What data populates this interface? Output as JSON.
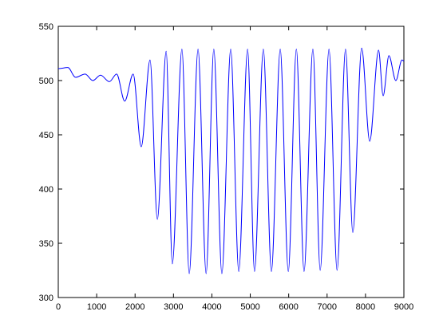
{
  "chart_data": {
    "type": "line",
    "x": [
      0,
      250,
      450,
      700,
      900,
      1100,
      1330,
      1520,
      1730,
      1950,
      2160,
      2390,
      2580,
      2810,
      2970,
      3220,
      3410,
      3640,
      3850,
      4050,
      4260,
      4490,
      4700,
      4930,
      5110,
      5340,
      5550,
      5780,
      5990,
      6200,
      6400,
      6630,
      6820,
      7050,
      7260,
      7480,
      7670,
      7900,
      8110,
      8340,
      8460,
      8610,
      8790,
      8950,
      9000
    ],
    "series": [
      {
        "color": "#0000ff",
        "values": [
          511,
          512,
          503,
          506,
          500,
          505,
          499,
          506,
          481,
          506,
          439,
          519,
          372,
          527,
          331,
          529,
          322,
          529,
          322,
          529,
          322,
          529,
          324,
          529,
          324,
          529,
          324,
          529,
          324,
          529,
          324,
          529,
          325,
          529,
          325,
          529,
          360,
          530,
          444,
          528,
          486,
          523,
          500,
          519,
          518
        ]
      }
    ],
    "xlim": [
      0,
      9000
    ],
    "xticks": [
      0,
      1000,
      2000,
      3000,
      4000,
      5000,
      6000,
      7000,
      8000,
      9000
    ],
    "ylim": [
      300,
      550
    ],
    "yticks": [
      300,
      350,
      400,
      450,
      500,
      550
    ],
    "grid": false
  }
}
